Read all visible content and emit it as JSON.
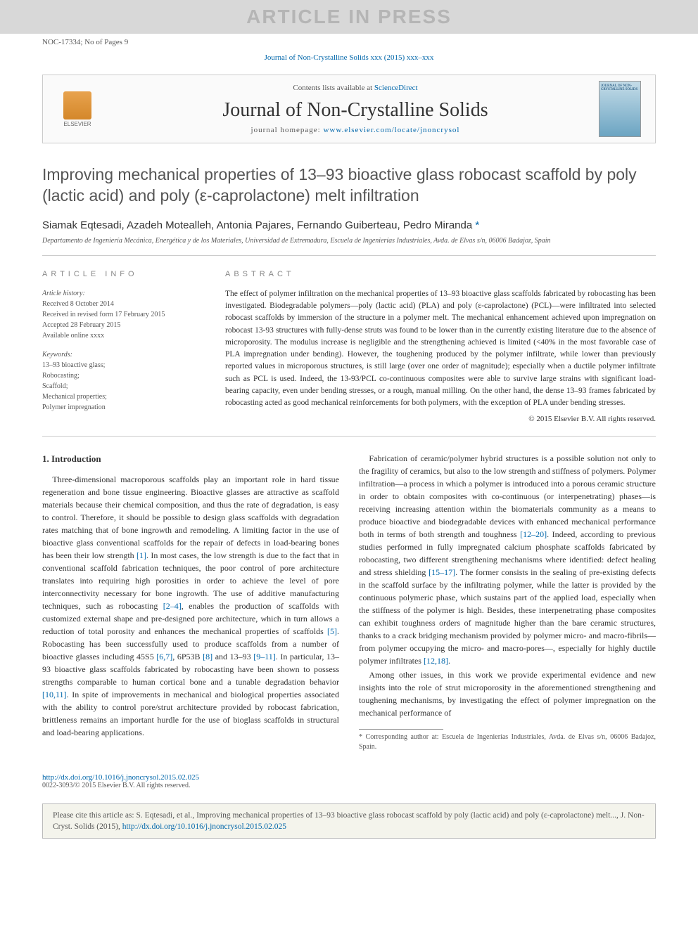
{
  "watermark": "ARTICLE IN PRESS",
  "article_id": "NOC-17334; No of Pages 9",
  "journal_link": "Journal of Non-Crystalline Solids xxx (2015) xxx–xxx",
  "header": {
    "elsevier": "ELSEVIER",
    "contents": "Contents lists available at ",
    "contents_link": "ScienceDirect",
    "journal_title": "Journal of Non-Crystalline Solids",
    "homepage_label": "journal homepage: ",
    "homepage_url": "www.elsevier.com/locate/jnoncrysol",
    "cover_text": "JOURNAL OF\nNON-CRYSTALLINE SOLIDS"
  },
  "title": "Improving mechanical properties of 13–93 bioactive glass robocast scaffold by poly (lactic acid) and poly (ε-caprolactone) melt infiltration",
  "authors": "Siamak Eqtesadi, Azadeh Motealleh, Antonia Pajares, Fernando Guiberteau, Pedro Miranda ",
  "corresponding_marker": "*",
  "affiliation": "Departamento de Ingeniería Mecánica, Energética y de los Materiales, Universidad de Extremadura, Escuela de Ingenierías Industriales, Avda. de Elvas s/n, 06006 Badajoz, Spain",
  "info": {
    "label": "article info",
    "history_label": "Article history:",
    "received": "Received 8 October 2014",
    "revised": "Received in revised form 17 February 2015",
    "accepted": "Accepted 28 February 2015",
    "available": "Available online xxxx",
    "keywords_label": "Keywords:",
    "keywords": [
      "13–93 bioactive glass;",
      "Robocasting;",
      "Scaffold;",
      "Mechanical properties;",
      "Polymer impregnation"
    ]
  },
  "abstract": {
    "label": "abstract",
    "text": "The effect of polymer infiltration on the mechanical properties of 13–93 bioactive glass scaffolds fabricated by robocasting has been investigated. Biodegradable polymers—poly (lactic acid) (PLA) and poly (ε-caprolactone) (PCL)—were infiltrated into selected robocast scaffolds by immersion of the structure in a polymer melt. The mechanical enhancement achieved upon impregnation on robocast 13-93 structures with fully-dense struts was found to be lower than in the currently existing literature due to the absence of microporosity. The modulus increase is negligible and the strengthening achieved is limited (<40% in the most favorable case of PLA impregnation under bending). However, the toughening produced by the polymer infiltrate, while lower than previously reported values in microporous structures, is still large (over one order of magnitude); especially when a ductile polymer infiltrate such as PCL is used. Indeed, the 13-93/PCL co-continuous composites were able to survive large strains with significant load-bearing capacity, even under bending stresses, or a rough, manual milling. On the other hand, the dense 13–93 frames fabricated by robocasting acted as good mechanical reinforcements for both polymers, with the exception of PLA under bending stresses.",
    "copyright": "© 2015 Elsevier B.V. All rights reserved."
  },
  "body": {
    "intro_heading": "1. Introduction",
    "p1a": "Three-dimensional macroporous scaffolds play an important role in hard tissue regeneration and bone tissue engineering. Bioactive glasses are attractive as scaffold materials because their chemical composition, and thus the rate of degradation, is easy to control. Therefore, it should be possible to design glass scaffolds with degradation rates matching that of bone ingrowth and remodeling. A limiting factor in the use of bioactive glass conventional scaffolds for the repair of defects in load-bearing bones has been their low strength ",
    "r1": "[1]",
    "p1b": ". In most cases, the low strength is due to the fact that in conventional scaffold fabrication techniques, the poor control of pore architecture translates into requiring high porosities in order to achieve the level of pore interconnectivity necessary for bone ingrowth. The use of additive manufacturing techniques, such as robocasting ",
    "r2": "[2–4]",
    "p1c": ", enables the production of scaffolds with customized external shape and pre-designed pore architecture, which in turn allows a reduction of total porosity and enhances the mechanical properties of scaffolds ",
    "r5": "[5]",
    "p1d": ". Robocasting has been successfully used to produce scaffolds from a number of bioactive glasses including 45S5 ",
    "r67": "[6,7]",
    "p1e": ", 6P53B ",
    "r8": "[8]",
    "p1f": " and 13–93 ",
    "r911": "[9–11]",
    "p1g": ". In particular, 13–93 bioactive glass scaffolds fabricated by robocasting have been shown to possess strengths comparable to human cortical bone and a tunable degradation behavior ",
    "r1011": "[10,11]",
    "p1h": ". In spite of improvements in mechanical and biological properties associated with the ability to control pore/strut architecture provided by robocast fabrication, brittleness remains an important hurdle for the use of bioglass scaffolds in structural and load-bearing applications.",
    "p2a": "Fabrication of ceramic/polymer hybrid structures is a possible solution not only to the fragility of ceramics, but also to the low strength and stiffness of polymers. Polymer infiltration—a process in which a polymer is introduced into a porous ceramic structure in order to obtain composites with co-continuous (or interpenetrating) phases—is receiving increasing attention within the biomaterials community as a means to produce bioactive and biodegradable devices with enhanced mechanical performance both in terms of both strength and toughness ",
    "r1220": "[12–20]",
    "p2b": ". Indeed, according to previous studies performed in fully impregnated calcium phosphate scaffolds fabricated by robocasting, two different strengthening mechanisms where identified: defect healing and stress shielding ",
    "r1517": "[15–17]",
    "p2c": ". The former consists in the sealing of pre-existing defects in the scaffold surface by the infiltrating polymer, while the latter is provided by the continuous polymeric phase, which sustains part of the applied load, especially when the stiffness of the polymer is high. Besides, these interpenetrating phase composites can exhibit toughness orders of magnitude higher than the bare ceramic structures, thanks to a crack bridging mechanism provided by polymer micro- and macro-fibrils—from polymer occupying the micro- and macro-pores—, especially for highly ductile polymer infiltrates ",
    "r1218": "[12,18]",
    "p2d": ".",
    "p3": "Among other issues, in this work we provide experimental evidence and new insights into the role of strut microporosity in the aforementioned strengthening and toughening mechanisms, by investigating the effect of polymer impregnation on the mechanical performance of"
  },
  "footnote": {
    "marker": "*",
    "text": " Corresponding author at: Escuela de Ingenierías Industriales, Avda. de Elvas s/n, 06006 Badajoz, Spain."
  },
  "footer": {
    "doi": "http://dx.doi.org/10.1016/j.jnoncrysol.2015.02.025",
    "issn": "0022-3093/© 2015 Elsevier B.V. All rights reserved."
  },
  "citebox": {
    "text": "Please cite this article as: S. Eqtesadi, et al., Improving mechanical properties of 13–93 bioactive glass robocast scaffold by poly (lactic acid) and poly (ε-caprolactone) melt..., J. Non-Cryst. Solids (2015), ",
    "url": "http://dx.doi.org/10.1016/j.jnoncrysol.2015.02.025"
  },
  "colors": {
    "link": "#0066aa",
    "watermark_bg": "#d8d8d8",
    "watermark_text": "#b5b5b5",
    "citebox_bg": "#f4f4ec"
  }
}
